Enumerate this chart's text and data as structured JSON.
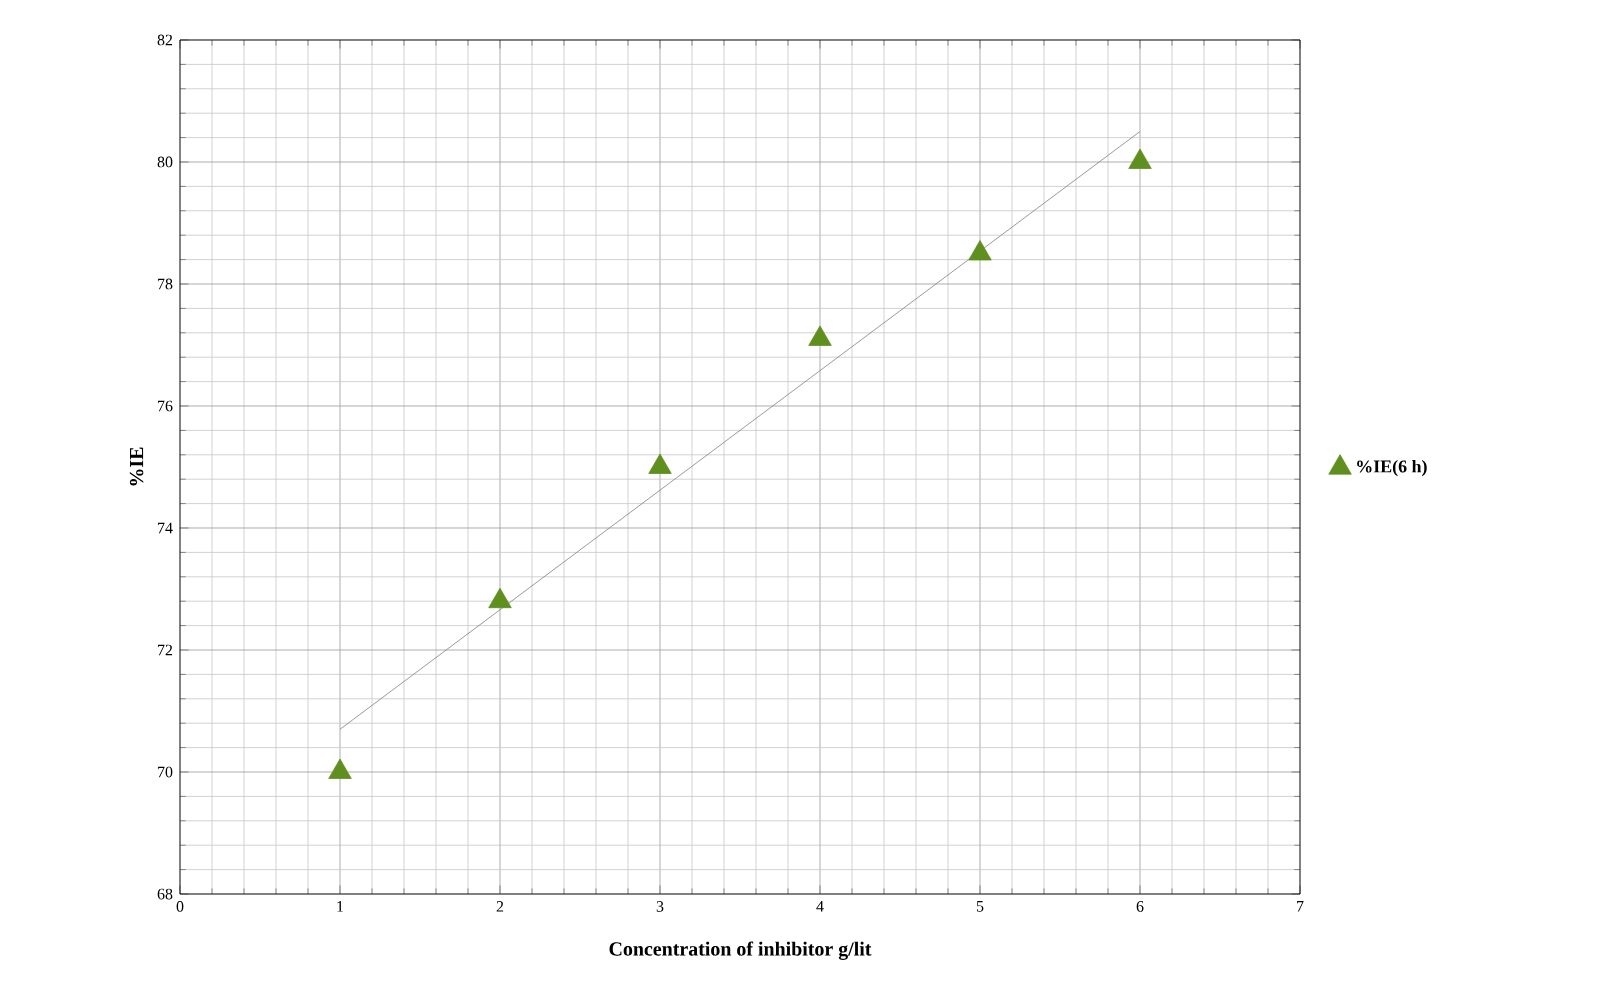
{
  "chart_data": {
    "type": "scatter",
    "xlabel": "Concentration of inhibitor g/lit",
    "ylabel": "%IE",
    "xlim": [
      0,
      7
    ],
    "xticks": [
      0,
      1,
      2,
      3,
      4,
      5,
      6,
      7
    ],
    "ylim": [
      68,
      82
    ],
    "yticks": [
      68,
      70,
      72,
      74,
      76,
      78,
      80,
      82
    ],
    "grid": true,
    "legend": "right",
    "series": [
      {
        "type": "line",
        "color": "#808080",
        "marker": "none",
        "x": [
          1,
          6
        ],
        "values": [
          70.7,
          80.5
        ]
      },
      {
        "name": "%IE(6 h)",
        "color": "#5f8f1f",
        "marker": "triangle",
        "x": [
          1,
          2,
          3,
          4,
          5,
          6
        ],
        "values": [
          70.0,
          72.8,
          75.0,
          77.1,
          78.5,
          80.0
        ]
      }
    ]
  }
}
